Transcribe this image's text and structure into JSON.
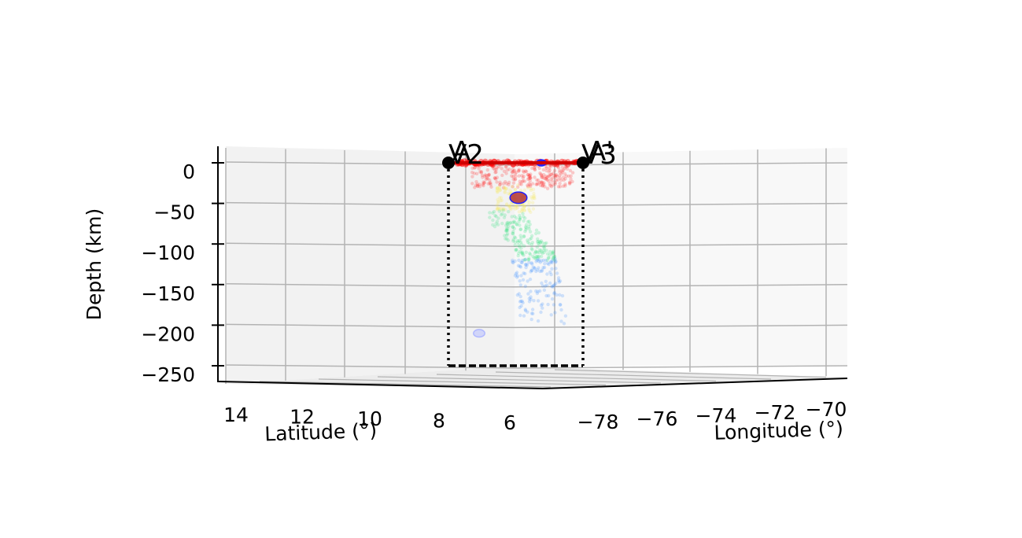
{
  "chart_data": {
    "type": "scatter",
    "projection": "3d",
    "xlabel": "Latitude (°)",
    "ylabel": "Longitude (°)",
    "zlabel": "Depth (km)",
    "latitude_ticks": [
      "14",
      "12",
      "10",
      "8",
      "6"
    ],
    "longitude_ticks": [
      "−78",
      "−76",
      "−74",
      "−72",
      "−70"
    ],
    "depth_ticks": [
      "0",
      "−50",
      "−100",
      "−150",
      "−200",
      "−250"
    ],
    "depth_range": [
      -260,
      15
    ],
    "grid": true,
    "profile_markers": [
      {
        "label": "A",
        "depth": 0
      },
      {
        "label": "A'",
        "depth": 0
      }
    ],
    "overlapping_marker_labels": [
      "V2",
      "V3"
    ],
    "profile_box_bottom_depth": -250,
    "color_depth_bins": [
      {
        "depth_range": [
          0,
          -30
        ],
        "color": "#ff2020"
      },
      {
        "depth_range": [
          -30,
          -60
        ],
        "color": "#f5e85a"
      },
      {
        "depth_range": [
          -60,
          -120
        ],
        "color": "#2ee07a"
      },
      {
        "depth_range": [
          -120,
          -200
        ],
        "color": "#3c8cff"
      }
    ],
    "highlighted_events": [
      {
        "depth": 0,
        "color": "#2020ff"
      },
      {
        "depth": -43,
        "color": "#2020ff"
      },
      {
        "depth": -210,
        "color": "#b0b8ff"
      }
    ]
  }
}
